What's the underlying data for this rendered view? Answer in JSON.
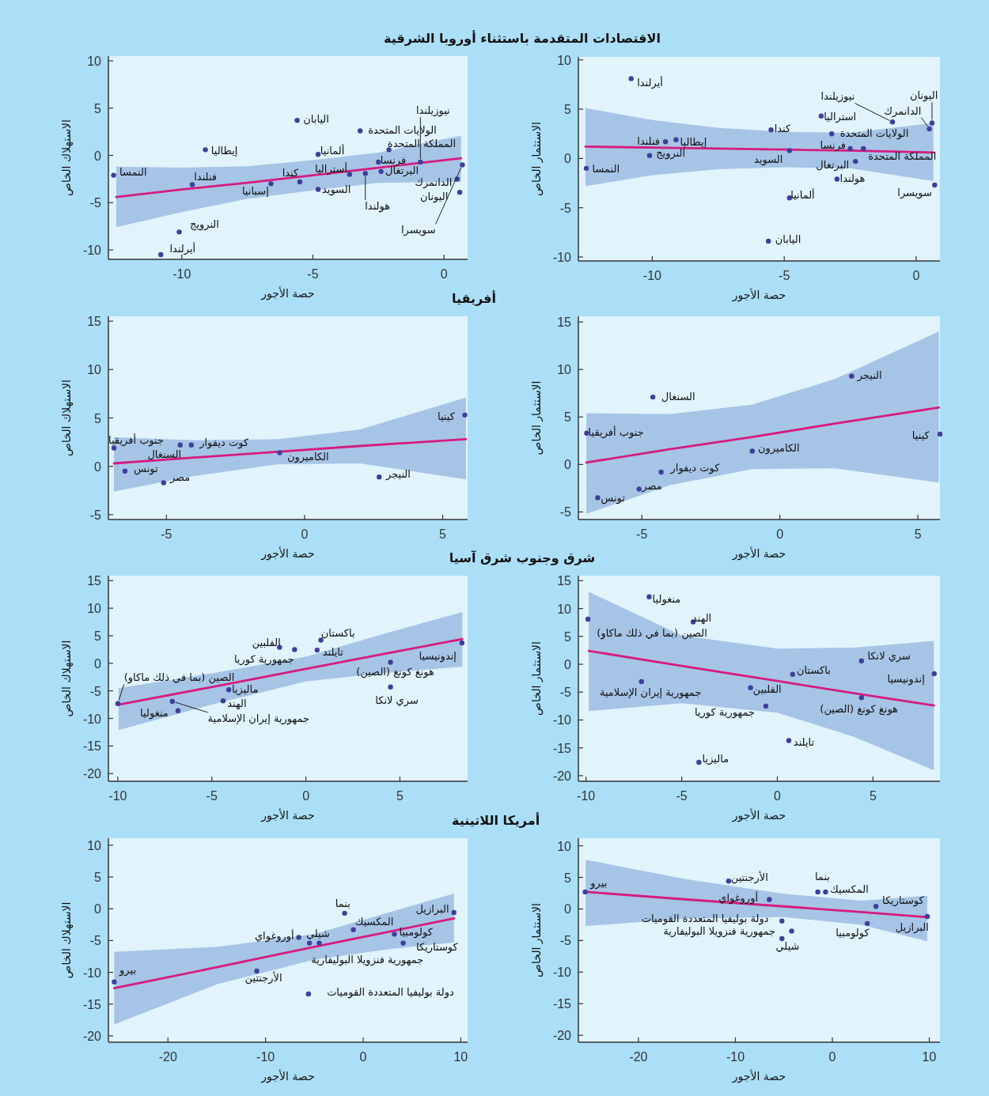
{
  "chart_data": [
    {
      "type": "scatter",
      "title": "الاقتصادات المتقدمة باستثناء أوروبا الشرقية",
      "xlabel": "حصة الأجور",
      "ylabel": "الاستهلاك الخاص",
      "xlim": [
        -12.8,
        0.9
      ],
      "ylim": [
        -11,
        10.5
      ],
      "xticks": [
        -10,
        -5,
        0
      ],
      "yticks": [
        -10,
        -5,
        0,
        5,
        10
      ],
      "series": [
        {
          "color": "#3f3f9b",
          "marker": "circle",
          "x": [
            -12.6,
            -9.6,
            -9.1,
            -10.1,
            -10.8,
            -6.6,
            -5.6,
            -5.5,
            -4.8,
            -4.8,
            -3.6,
            -3.0,
            -3.2,
            -2.1,
            -2.5,
            -2.4,
            -0.9,
            0.5,
            0.6,
            0.7
          ],
          "values": [
            -2.1,
            -3.1,
            0.6,
            -8.1,
            -10.5,
            -3.0,
            3.7,
            -2.8,
            0.1,
            -3.6,
            -2.0,
            -1.9,
            2.6,
            0.6,
            -0.7,
            -1.7,
            -0.7,
            -2.5,
            -3.9,
            -1.0
          ]
        },
        {
          "type": "line",
          "color": "#d61b7e",
          "x": [
            -12.5,
            -10,
            -7.5,
            -5,
            -2.5,
            0.65
          ],
          "values": [
            -4.4,
            -3.6,
            -2.9,
            -2.1,
            -1.3,
            -0.3
          ],
          "lower": [
            -7.6,
            -6.0,
            -4.6,
            -3.7,
            -2.9,
            -2.8
          ],
          "upper": [
            -1.2,
            -1.3,
            -1.15,
            -0.5,
            0.3,
            2.1
          ]
        }
      ],
      "annotations": [
        {
          "text": "النمسا",
          "x": -12.6,
          "y": -2.1
        },
        {
          "text": "فنلندا",
          "x": -9.6,
          "y": -3.1
        },
        {
          "text": "إيطاليا",
          "x": -9.1,
          "y": 0.6
        },
        {
          "text": "النرويج",
          "x": -10.1,
          "y": -8.1
        },
        {
          "text": "أيرلندا",
          "x": -10.8,
          "y": -10.5
        },
        {
          "text": "إسبانيا",
          "x": -6.6,
          "y": -3.0
        },
        {
          "text": "اليابان",
          "x": -5.6,
          "y": 3.7
        },
        {
          "text": "كندا",
          "x": -5.5,
          "y": -2.8
        },
        {
          "text": "ألمانيا",
          "x": -4.8,
          "y": 0.1
        },
        {
          "text": "السويد",
          "x": -4.8,
          "y": -3.6
        },
        {
          "text": "أستراليا",
          "x": -3.6,
          "y": -2.0
        },
        {
          "text": "هولندا",
          "x": -3.0,
          "y": -1.9
        },
        {
          "text": "الولايات المتحدة",
          "x": -3.2,
          "y": 2.6
        },
        {
          "text": "المملكة المتحدة",
          "x": -2.1,
          "y": 0.6
        },
        {
          "text": "فرنسا",
          "x": -2.5,
          "y": -0.7
        },
        {
          "text": "البرتغال",
          "x": -2.4,
          "y": -1.7
        },
        {
          "text": "نيوزيلندا",
          "x": -0.9,
          "y": -0.7
        },
        {
          "text": "الدانمرك",
          "x": 0.5,
          "y": -2.5
        },
        {
          "text": "اليونان",
          "x": 0.6,
          "y": -3.9
        },
        {
          "text": "سويسرا",
          "x": 0.7,
          "y": -1.0
        }
      ]
    },
    {
      "type": "scatter",
      "xlabel": "حصة الأجور",
      "ylabel": "الاستثمار الخاص",
      "xlim": [
        -12.8,
        0.9
      ],
      "ylim": [
        -10.4,
        10.3
      ],
      "xticks": [
        -10,
        -5,
        0
      ],
      "yticks": [
        -10,
        -5,
        0,
        5,
        10
      ],
      "series": [
        {
          "color": "#3f3f9b",
          "marker": "circle",
          "x": [
            -12.5,
            -10.8,
            -9.5,
            -9.1,
            -10.1,
            -5.5,
            -4.8,
            -4.8,
            -5.6,
            -3.6,
            -3.2,
            -2.5,
            -2.0,
            -2.3,
            -3.0,
            -0.9,
            0.5,
            0.6,
            0.7
          ],
          "values": [
            -1.0,
            8.1,
            1.7,
            1.9,
            0.3,
            2.9,
            0.8,
            -4.0,
            -8.4,
            4.3,
            2.5,
            1.0,
            1.0,
            -0.3,
            -2.1,
            3.7,
            3.0,
            3.6,
            -2.7
          ]
        },
        {
          "type": "line",
          "color": "#d61b7e",
          "x": [
            -12.53,
            -10,
            -7.5,
            -5,
            -2.5,
            0.65
          ],
          "values": [
            1.2,
            1.1,
            1.0,
            0.9,
            0.8,
            0.6
          ],
          "lower": [
            -2.8,
            -1.7,
            -1.1,
            -0.9,
            -1.0,
            -2.3
          ],
          "upper": [
            5.1,
            3.9,
            3.1,
            2.7,
            2.6,
            3.6
          ]
        }
      ],
      "annotations": [
        {
          "text": "النمسا",
          "x": -12.5,
          "y": -1.0
        },
        {
          "text": "أيرلندا",
          "x": -10.8,
          "y": 8.1
        },
        {
          "text": "فنلندا",
          "x": -9.5,
          "y": 1.7
        },
        {
          "text": "إيطاليا",
          "x": -9.1,
          "y": 1.9
        },
        {
          "text": "النرويج",
          "x": -10.1,
          "y": 0.3
        },
        {
          "text": "كندا",
          "x": -5.5,
          "y": 2.9
        },
        {
          "text": "السويد",
          "x": -4.8,
          "y": 0.8
        },
        {
          "text": "ألمانيا",
          "x": -4.8,
          "y": -4.0
        },
        {
          "text": "اليابان",
          "x": -5.6,
          "y": -8.4
        },
        {
          "text": "استراليا",
          "x": -3.6,
          "y": 4.3
        },
        {
          "text": "الولايات المتحدة",
          "x": -3.2,
          "y": 2.5
        },
        {
          "text": "فرنسا",
          "x": -2.5,
          "y": 1.0
        },
        {
          "text": "المملكة المتحدة",
          "x": -2.0,
          "y": 1.0
        },
        {
          "text": "البرتغال",
          "x": -2.3,
          "y": -0.3
        },
        {
          "text": "هولندا",
          "x": -3.0,
          "y": -2.1
        },
        {
          "text": "نيوزيلندا",
          "x": -0.9,
          "y": 3.7
        },
        {
          "text": "الدانمرك",
          "x": 0.5,
          "y": 3.0
        },
        {
          "text": "اليونان",
          "x": 0.6,
          "y": 3.6
        },
        {
          "text": "سويسرا",
          "x": 0.7,
          "y": -2.7
        }
      ]
    },
    {
      "type": "scatter",
      "title": "أفريقيا",
      "xlabel": "حصة الأجور",
      "ylabel": "الاستهلاك الخاص",
      "xlim": [
        -7.1,
        5.9
      ],
      "ylim": [
        -5.5,
        15.5
      ],
      "xticks": [
        -5,
        0,
        5
      ],
      "yticks": [
        -5,
        0,
        5,
        10,
        15
      ],
      "series": [
        {
          "color": "#3f3f9b",
          "marker": "circle",
          "x": [
            -6.9,
            -4.5,
            -4.1,
            -6.5,
            -5.1,
            -0.9,
            2.7,
            5.8
          ],
          "values": [
            1.9,
            2.2,
            2.2,
            -0.5,
            -1.7,
            1.4,
            -1.1,
            5.3
          ]
        },
        {
          "type": "line",
          "color": "#d61b7e",
          "x": [
            -6.9,
            -4,
            -1,
            2,
            5.84
          ],
          "values": [
            0.3,
            0.9,
            1.5,
            2.1,
            2.8
          ],
          "lower": [
            -2.6,
            -1.0,
            0.2,
            0.3,
            -1.35
          ],
          "upper": [
            3.0,
            2.7,
            2.8,
            3.8,
            7.1
          ]
        }
      ],
      "annotations": [
        {
          "text": "جنوب أفريقيا",
          "x": -6.9,
          "y": 1.9
        },
        {
          "text": "السنغال",
          "x": -4.5,
          "y": 2.2
        },
        {
          "text": "كوت ديفوار",
          "x": -4.1,
          "y": 2.2
        },
        {
          "text": "تونس",
          "x": -6.5,
          "y": -0.5
        },
        {
          "text": "مصر",
          "x": -5.1,
          "y": -1.7
        },
        {
          "text": "الكاميرون",
          "x": -0.9,
          "y": 1.4
        },
        {
          "text": "النيجر",
          "x": 2.7,
          "y": -1.1
        },
        {
          "text": "كينيا",
          "x": 5.8,
          "y": 5.3
        }
      ]
    },
    {
      "type": "scatter",
      "xlabel": "حصة الأجور",
      "ylabel": "الاستثمار الخاص",
      "xlim": [
        -7.3,
        5.8
      ],
      "ylim": [
        -5.8,
        15.6
      ],
      "xticks": [
        -5,
        0,
        5
      ],
      "yticks": [
        -5,
        0,
        5,
        10,
        15
      ],
      "series": [
        {
          "color": "#3f3f9b",
          "marker": "circle",
          "x": [
            -4.6,
            2.6,
            -7.0,
            5.8,
            -1.0,
            -4.3,
            -5.1,
            -6.6
          ],
          "values": [
            7.1,
            9.3,
            3.3,
            3.2,
            1.4,
            -0.8,
            -2.6,
            -3.5
          ]
        },
        {
          "type": "line",
          "color": "#d61b7e",
          "x": [
            -7.01,
            -4,
            -1,
            2,
            5.76
          ],
          "values": [
            0.2,
            1.6,
            2.9,
            4.3,
            6.0
          ],
          "lower": [
            -5.2,
            -2.2,
            -0.5,
            -0.4,
            -1.9
          ],
          "upper": [
            5.4,
            5.3,
            6.3,
            9.0,
            14.0
          ]
        }
      ],
      "annotations": [
        {
          "text": "السنغال",
          "x": -4.6,
          "y": 7.1
        },
        {
          "text": "النيجر",
          "x": 2.6,
          "y": 9.3
        },
        {
          "text": "جنوب أفريقيا",
          "x": -7.0,
          "y": 3.3
        },
        {
          "text": "كينيا",
          "x": 5.8,
          "y": 3.2
        },
        {
          "text": "الكاميرون",
          "x": -1.0,
          "y": 1.4
        },
        {
          "text": "كوت ديفوار",
          "x": -4.3,
          "y": -0.8
        },
        {
          "text": "مصر",
          "x": -5.1,
          "y": -2.6
        },
        {
          "text": "تونس",
          "x": -6.6,
          "y": -3.5
        }
      ]
    },
    {
      "type": "scatter",
      "title": "شرق وجنوب شرق آسيا",
      "xlabel": "حصة الأجور",
      "ylabel": "الاستهلاك الخاص",
      "xlim": [
        -10.5,
        8.6
      ],
      "ylim": [
        -21.4,
        15.9
      ],
      "xticks": [
        -10,
        -5,
        0,
        5
      ],
      "yticks": [
        -20,
        -15,
        -10,
        -5,
        0,
        5,
        10,
        15
      ],
      "series": [
        {
          "color": "#3f3f9b",
          "marker": "circle",
          "x": [
            -10.0,
            -7.1,
            -6.8,
            -4.1,
            -4.4,
            -1.4,
            -0.6,
            0.6,
            0.8,
            4.5,
            4.5,
            8.3
          ],
          "values": [
            -7.3,
            -6.9,
            -8.6,
            -4.8,
            -6.8,
            2.9,
            2.5,
            2.4,
            4.2,
            0.2,
            -4.3,
            3.7
          ]
        },
        {
          "type": "line",
          "color": "#d61b7e",
          "x": [
            -9.96,
            -5,
            0,
            4,
            8.32
          ],
          "values": [
            -7.5,
            -4.3,
            -1.0,
            1.6,
            4.4
          ],
          "lower": [
            -12.1,
            -7.5,
            -3.3,
            -1.8,
            -0.6
          ],
          "upper": [
            -4.5,
            -1.8,
            1.2,
            5.2,
            9.3
          ]
        }
      ],
      "annotations": [
        {
          "text": "الصين (بما في ذلك ماكاو)",
          "x": -10.0,
          "y": -7.3
        },
        {
          "text": "جمهورية إيران الإسلامية",
          "x": -7.1,
          "y": -6.9
        },
        {
          "text": "منغوليا",
          "x": -6.8,
          "y": -8.6
        },
        {
          "text": "ماليزيا",
          "x": -4.1,
          "y": -4.8
        },
        {
          "text": "الهند",
          "x": -4.4,
          "y": -6.8
        },
        {
          "text": "الفلبين",
          "x": -1.4,
          "y": 2.9
        },
        {
          "text": "جمهورية كوريا",
          "x": -0.6,
          "y": 2.5
        },
        {
          "text": "تايلند",
          "x": 0.6,
          "y": 2.4
        },
        {
          "text": "باكستان",
          "x": 0.8,
          "y": 4.2
        },
        {
          "text": "هونغ كونغ (الصين)",
          "x": 4.5,
          "y": 0.2
        },
        {
          "text": "سري لانكا",
          "x": 4.5,
          "y": -4.3
        },
        {
          "text": "إندونيسيا",
          "x": 8.3,
          "y": 3.7
        }
      ]
    },
    {
      "type": "scatter",
      "xlabel": "حصة الأجور",
      "ylabel": "الاستثمار الخاص",
      "xlim": [
        -10.4,
        8.5
      ],
      "ylim": [
        -21,
        15.9
      ],
      "xticks": [
        -10,
        -5,
        0,
        5
      ],
      "yticks": [
        -20,
        -15,
        -10,
        -5,
        0,
        5,
        10,
        15
      ],
      "series": [
        {
          "color": "#3f3f9b",
          "marker": "circle",
          "x": [
            -9.9,
            -6.7,
            -4.4,
            -7.1,
            -1.4,
            -0.6,
            0.8,
            0.6,
            -4.1,
            4.4,
            4.4,
            8.2
          ],
          "values": [
            8.1,
            12.1,
            7.6,
            -3.1,
            -4.2,
            -7.5,
            -1.8,
            -13.7,
            -17.6,
            0.6,
            -6.0,
            -1.7
          ]
        },
        {
          "type": "line",
          "color": "#d61b7e",
          "x": [
            -9.86,
            -5,
            0,
            4,
            8.18
          ],
          "values": [
            2.4,
            -0.3,
            -3.0,
            -5.2,
            -7.4
          ],
          "lower": [
            -8.4,
            -7.0,
            -8.7,
            -13.0,
            -19.0
          ],
          "upper": [
            13.0,
            5.2,
            2.8,
            3.0,
            4.2
          ]
        }
      ],
      "annotations": [
        {
          "text": "الصين (بما في ذلك ماكاو)",
          "x": -9.9,
          "y": 8.1
        },
        {
          "text": "منغوليا",
          "x": -6.7,
          "y": 12.1
        },
        {
          "text": "الهند",
          "x": -4.4,
          "y": 7.6
        },
        {
          "text": "جمهورية إيران الإسلامية",
          "x": -7.1,
          "y": -3.1
        },
        {
          "text": "الفلبين",
          "x": -1.4,
          "y": -4.2
        },
        {
          "text": "جمهورية كوريا",
          "x": -0.6,
          "y": -7.5
        },
        {
          "text": "باكستان",
          "x": 0.8,
          "y": -1.8
        },
        {
          "text": "تايلند",
          "x": 0.6,
          "y": -13.7
        },
        {
          "text": "ماليزيا",
          "x": -4.1,
          "y": -17.6
        },
        {
          "text": "سري لانكا",
          "x": 4.4,
          "y": 0.6
        },
        {
          "text": "هونغ كونغ (الصين)",
          "x": 4.4,
          "y": -6.0
        },
        {
          "text": "إندونيسيا",
          "x": 8.2,
          "y": -1.7
        }
      ]
    },
    {
      "type": "scatter",
      "title": "أمريكا اللاتينية",
      "xlabel": "حصة الأجور",
      "ylabel": "الاستهلاك الخاص",
      "xlim": [
        -26.1,
        10.7
      ],
      "ylim": [
        -21,
        11.1
      ],
      "xticks": [
        -20,
        -10,
        0,
        10
      ],
      "yticks": [
        -20,
        -15,
        -10,
        -5,
        0,
        5,
        10
      ],
      "series": [
        {
          "color": "#3f3f9b",
          "marker": "circle",
          "x": [
            -25.5,
            -10.9,
            -6.6,
            -5.5,
            -4.5,
            -5.6,
            -1.9,
            -1.0,
            3.2,
            4.1,
            9.3
          ],
          "values": [
            -11.5,
            -9.8,
            -4.5,
            -5.4,
            -5.4,
            -13.4,
            -0.7,
            -3.3,
            -4.0,
            -5.4,
            -0.6
          ]
        },
        {
          "type": "line",
          "color": "#d61b7e",
          "x": [
            -25.5,
            -15,
            -5,
            3,
            9.31
          ],
          "values": [
            -12.5,
            -9.2,
            -6.0,
            -3.5,
            -1.5
          ],
          "lower": [
            -18.2,
            -11.9,
            -8.0,
            -6.3,
            -5.3
          ],
          "upper": [
            -6.8,
            -6.0,
            -4.0,
            -0.4,
            2.4
          ]
        }
      ],
      "annotations": [
        {
          "text": "بيرو",
          "x": -25.5,
          "y": -11.5
        },
        {
          "text": "الأرجنتين",
          "x": -10.9,
          "y": -9.8
        },
        {
          "text": "أوروغواي",
          "x": -6.6,
          "y": -4.5
        },
        {
          "text": "شيلي",
          "x": -5.5,
          "y": -5.4
        },
        {
          "text": "جمهورية فنزويلا البوليفارية",
          "x": -4.5,
          "y": -5.4
        },
        {
          "text": "دولة بوليفيا المتعددة القوميات",
          "x": -5.6,
          "y": -13.4
        },
        {
          "text": "بنما",
          "x": -1.9,
          "y": -0.7
        },
        {
          "text": "المكسيك",
          "x": -1.0,
          "y": -3.3
        },
        {
          "text": "كولومبيا",
          "x": 3.2,
          "y": -4.0
        },
        {
          "text": "كوستاريكا",
          "x": 4.1,
          "y": -5.4
        },
        {
          "text": "البرازيل",
          "x": 9.3,
          "y": -0.6
        }
      ]
    },
    {
      "type": "scatter",
      "xlabel": "حصة الأجور",
      "ylabel": "الاستثمار الخاص",
      "xlim": [
        -26.2,
        11.1
      ],
      "ylim": [
        -21.1,
        11.2
      ],
      "xticks": [
        -20,
        -10,
        0,
        10
      ],
      "yticks": [
        -20,
        -15,
        -10,
        -5,
        0,
        5,
        10
      ],
      "series": [
        {
          "color": "#3f3f9b",
          "marker": "circle",
          "x": [
            -25.5,
            -10.7,
            -6.5,
            -5.2,
            -4.2,
            -5.2,
            -1.5,
            -0.7,
            4.5,
            3.6,
            9.8
          ],
          "values": [
            2.7,
            4.4,
            1.5,
            -1.9,
            -3.5,
            -4.7,
            2.7,
            2.7,
            0.4,
            -2.3,
            -1.2
          ]
        },
        {
          "type": "line",
          "color": "#d61b7e",
          "x": [
            -25.45,
            -15,
            -5,
            3,
            9.79
          ],
          "values": [
            2.7,
            1.5,
            0.4,
            -0.5,
            -1.3
          ],
          "lower": [
            -2.7,
            -1.5,
            -1.3,
            -2.5,
            -5.1
          ],
          "upper": [
            7.8,
            4.7,
            2.4,
            1.3,
            2.1
          ]
        }
      ],
      "annotations": [
        {
          "text": "بيرو",
          "x": -25.5,
          "y": 2.7
        },
        {
          "text": "الأرجنتين",
          "x": -10.7,
          "y": 4.4
        },
        {
          "text": "أوروغواي",
          "x": -6.5,
          "y": 1.5
        },
        {
          "text": "دولة بوليفيا المتعددة القوميات",
          "x": -5.2,
          "y": -1.9
        },
        {
          "text": "جمهورية فنزويلا البوليفارية",
          "x": -4.2,
          "y": -3.5
        },
        {
          "text": "شيلي",
          "x": -5.2,
          "y": -4.7
        },
        {
          "text": "بنما",
          "x": -1.5,
          "y": 2.7
        },
        {
          "text": "المكسيك",
          "x": -0.7,
          "y": 2.7
        },
        {
          "text": "كوستاريكا",
          "x": 4.5,
          "y": 0.4
        },
        {
          "text": "كولومبيا",
          "x": 3.6,
          "y": -2.3
        },
        {
          "text": "البرازيل",
          "x": 9.8,
          "y": -1.2
        }
      ]
    }
  ]
}
